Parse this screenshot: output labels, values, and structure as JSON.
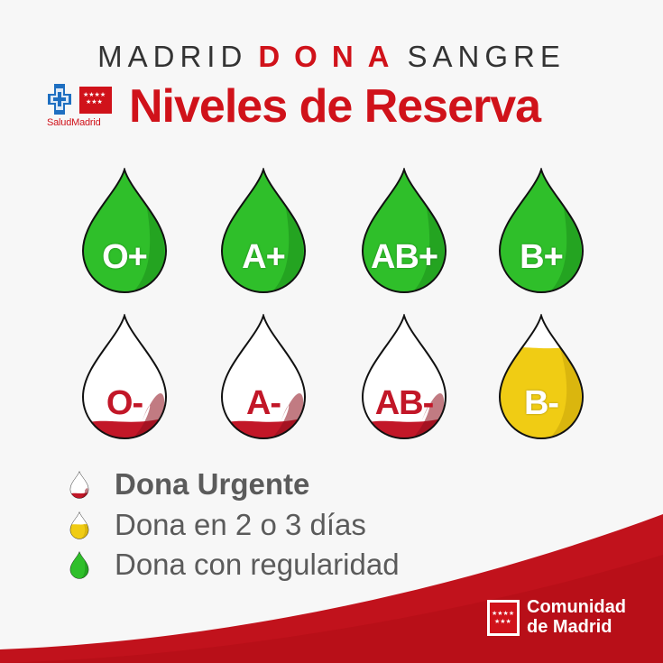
{
  "header": {
    "brand_left": "MADRID",
    "brand_mid": "DONA",
    "brand_right": "SANGRE",
    "title": "Niveles de Reserva",
    "salud_logo_text": "SaludMadrid"
  },
  "drops": [
    {
      "label": "O+",
      "status": "regular",
      "fill_level": 1.0
    },
    {
      "label": "A+",
      "status": "regular",
      "fill_level": 1.0
    },
    {
      "label": "AB+",
      "status": "regular",
      "fill_level": 1.0
    },
    {
      "label": "B+",
      "status": "regular",
      "fill_level": 1.0
    },
    {
      "label": "O-",
      "status": "urgent",
      "fill_level": 0.15
    },
    {
      "label": "A-",
      "status": "urgent",
      "fill_level": 0.15
    },
    {
      "label": "AB-",
      "status": "urgent",
      "fill_level": 0.15
    },
    {
      "label": "B-",
      "status": "soon",
      "fill_level": 0.75
    }
  ],
  "legend": [
    {
      "status": "urgent",
      "text": "Dona Urgente"
    },
    {
      "status": "soon",
      "text": "Dona en 2 o 3 días"
    },
    {
      "status": "regular",
      "text": "Dona con regularidad"
    }
  ],
  "footer": {
    "org_line1": "Comunidad",
    "org_line2": "de Madrid"
  },
  "colors": {
    "brand_red": "#d0121a",
    "green": "#2fbf2a",
    "green_dark": "#1c8e19",
    "yellow": "#f0cc14",
    "yellow_dark": "#c9a40a",
    "blood_red": "#c21728",
    "text_gray": "#5b5b5b"
  }
}
